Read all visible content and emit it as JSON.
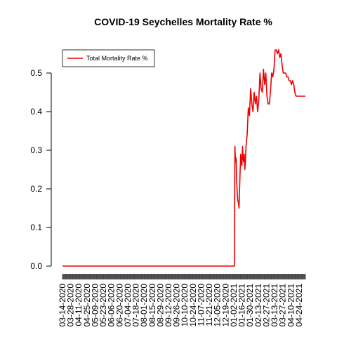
{
  "chart_data": {
    "type": "line",
    "title": "COVID-19 Seychelles Mortality Rate %",
    "xlabel": "",
    "ylabel": "",
    "ylim": [
      0,
      0.56
    ],
    "y_ticks": [
      0.0,
      0.1,
      0.2,
      0.3,
      0.4,
      0.5
    ],
    "y_tick_labels": [
      "0.0",
      "0.1",
      "0.2",
      "0.3",
      "0.4",
      "0.5"
    ],
    "x_range": [
      "03-14-2020",
      "05-05-2021"
    ],
    "x_tick_labels": [
      "03-14-2020",
      "03-28-2020",
      "04-11-2020",
      "04-25-2020",
      "05-09-2020",
      "05-23-2020",
      "06-06-2020",
      "06-20-2020",
      "07-04-2020",
      "07-18-2020",
      "08-01-2020",
      "08-15-2020",
      "08-29-2020",
      "09-12-2020",
      "09-26-2020",
      "10-10-2020",
      "10-24-2020",
      "11-07-2020",
      "11-21-2020",
      "12-05-2020",
      "12-19-2020",
      "01-02-2021",
      "01-16-2021",
      "01-30-2021",
      "02-13-2021",
      "02-27-2021",
      "03-13-2021",
      "03-27-2021",
      "04-10-2021",
      "04-24-2021"
    ],
    "grid": false,
    "legend": {
      "position": "top-left",
      "entries": [
        {
          "label": "Total Mortality Rate %",
          "color": "#ee0000"
        }
      ]
    },
    "series": [
      {
        "name": "Total Mortality Rate %",
        "color": "#ee0000",
        "x": [
          "03-14-2020",
          "01-03-2021",
          "01-04-2021",
          "01-05-2021",
          "01-06-2021",
          "01-07-2021",
          "01-08-2021",
          "01-09-2021",
          "01-10-2021",
          "01-11-2021",
          "01-12-2021",
          "01-13-2021",
          "01-14-2021",
          "01-15-2021",
          "01-16-2021",
          "01-17-2021",
          "01-18-2021",
          "01-19-2021",
          "01-20-2021",
          "01-21-2021",
          "01-22-2021",
          "01-23-2021",
          "01-25-2021",
          "01-27-2021",
          "01-29-2021",
          "01-31-2021",
          "02-02-2021",
          "02-04-2021",
          "02-06-2021",
          "02-08-2021",
          "02-10-2021",
          "02-12-2021",
          "02-14-2021",
          "02-16-2021",
          "02-18-2021",
          "02-20-2021",
          "02-22-2021",
          "02-24-2021",
          "02-26-2021",
          "02-28-2021",
          "03-02-2021",
          "03-04-2021",
          "03-06-2021",
          "03-08-2021",
          "03-10-2021",
          "03-12-2021",
          "03-14-2021",
          "03-16-2021",
          "03-18-2021",
          "03-20-2021",
          "03-22-2021",
          "03-24-2021",
          "03-26-2021",
          "03-28-2021",
          "03-30-2021",
          "04-01-2021",
          "04-03-2021",
          "04-05-2021",
          "04-07-2021",
          "04-09-2021",
          "04-11-2021",
          "04-13-2021",
          "04-15-2021",
          "04-17-2021",
          "04-19-2021",
          "04-21-2021",
          "04-23-2021",
          "04-25-2021",
          "04-27-2021",
          "04-29-2021",
          "05-01-2021",
          "05-03-2021",
          "05-05-2021"
        ],
        "y": [
          0.0,
          0.0,
          0.31,
          0.27,
          0.28,
          0.22,
          0.19,
          0.17,
          0.165,
          0.15,
          0.2,
          0.25,
          0.29,
          0.27,
          0.26,
          0.31,
          0.28,
          0.27,
          0.29,
          0.25,
          0.27,
          0.31,
          0.34,
          0.41,
          0.39,
          0.46,
          0.42,
          0.4,
          0.45,
          0.42,
          0.44,
          0.4,
          0.43,
          0.5,
          0.46,
          0.45,
          0.51,
          0.47,
          0.5,
          0.44,
          0.42,
          0.42,
          0.45,
          0.5,
          0.49,
          0.51,
          0.56,
          0.56,
          0.55,
          0.56,
          0.54,
          0.55,
          0.52,
          0.5,
          0.5,
          0.5,
          0.49,
          0.49,
          0.48,
          0.48,
          0.47,
          0.48,
          0.47,
          0.45,
          0.44,
          0.44,
          0.44,
          0.44,
          0.44,
          0.44,
          0.44,
          0.44,
          0.44
        ]
      }
    ]
  }
}
